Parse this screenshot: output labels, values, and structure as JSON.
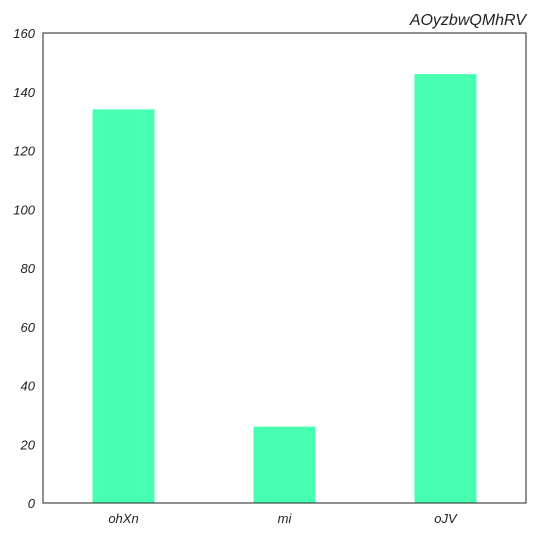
{
  "chart_data": {
    "type": "bar",
    "title": "AOyzbwQMhRV",
    "xlabel": "",
    "ylabel": "",
    "categories": [
      "ohXn",
      "mi",
      "oJV"
    ],
    "values": [
      134,
      26,
      146
    ],
    "ylim": [
      0,
      160
    ],
    "yticks": [
      0,
      20,
      40,
      60,
      80,
      100,
      120,
      140,
      160
    ],
    "bar_color": "#46ffb0",
    "grid": false,
    "legend": "none"
  }
}
